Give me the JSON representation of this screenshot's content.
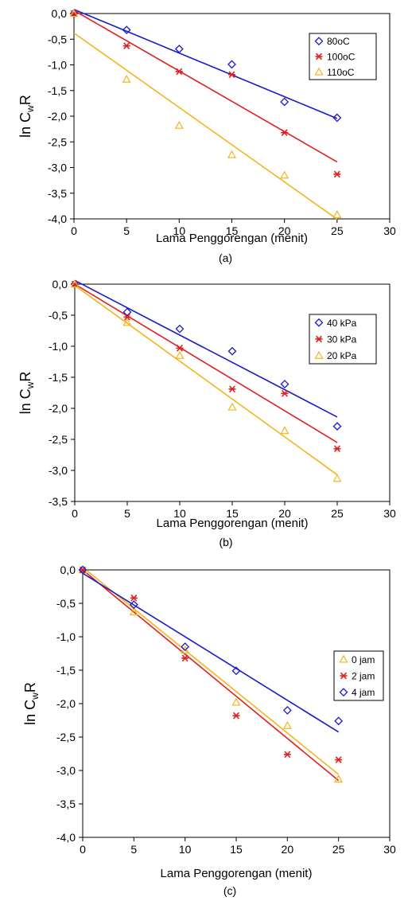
{
  "chart_data": [
    {
      "type": "scatter",
      "title": "",
      "panel_label": "(a)",
      "xlabel": "Lama Penggorengan (menit)",
      "ylabel": "ln C",
      "ylabel_sub": "w",
      "ylabel_tail": "R",
      "xlim": [
        0,
        30
      ],
      "ylim": [
        -4.0,
        0.0
      ],
      "xticks": [
        "0",
        "5",
        "10",
        "15",
        "20",
        "25",
        "30"
      ],
      "yticks": [
        "0,0",
        "-0,5",
        "-1,0",
        "-1,5",
        "-2,0",
        "-2,5",
        "-3,0",
        "-3,5",
        "-4,0"
      ],
      "grid": false,
      "legend_position": "top-right",
      "series": [
        {
          "name": "80oC",
          "marker": "diamond",
          "color": "#1a1acc",
          "x": [
            0,
            5,
            10,
            15,
            20,
            25
          ],
          "y": [
            0.0,
            -0.32,
            -0.69,
            -0.99,
            -1.72,
            -2.03
          ],
          "fit": [
            0.08,
            -0.085
          ]
        },
        {
          "name": "100oC",
          "marker": "asterisk",
          "color": "#e02020",
          "x": [
            0,
            5,
            10,
            15,
            20,
            25
          ],
          "y": [
            0.0,
            -0.63,
            -1.13,
            -1.19,
            -2.32,
            -3.13
          ],
          "fit": [
            0.06,
            -0.118
          ]
        },
        {
          "name": "110oC",
          "marker": "triangle",
          "color": "#f2b51c",
          "x": [
            0,
            5,
            10,
            15,
            20,
            25
          ],
          "y": [
            0.0,
            -1.28,
            -2.18,
            -2.75,
            -3.15,
            -3.92
          ],
          "fit": [
            -0.38,
            -0.145
          ]
        }
      ]
    },
    {
      "type": "scatter",
      "title": "",
      "panel_label": "(b)",
      "xlabel": "Lama Penggorengan (menit)",
      "ylabel": "ln C",
      "ylabel_sub": "w",
      "ylabel_tail": "R",
      "xlim": [
        0,
        30
      ],
      "ylim": [
        -3.5,
        0.0
      ],
      "xticks": [
        "0",
        "5",
        "10",
        "15",
        "20",
        "25",
        "30"
      ],
      "yticks": [
        "0,0",
        "-0,5",
        "-1,0",
        "-1,5",
        "-2,0",
        "-2,5",
        "-3,0",
        "-3,5"
      ],
      "grid": false,
      "legend_position": "top-right",
      "series": [
        {
          "name": "40 kPa",
          "marker": "diamond",
          "color": "#1a1acc",
          "x": [
            0,
            5,
            10,
            15,
            20,
            25
          ],
          "y": [
            0.0,
            -0.45,
            -0.72,
            -1.08,
            -1.61,
            -2.29
          ],
          "fit": [
            0.06,
            -0.088
          ]
        },
        {
          "name": "30 kPa",
          "marker": "asterisk",
          "color": "#e02020",
          "x": [
            0,
            5,
            10,
            15,
            20,
            25
          ],
          "y": [
            0.0,
            -0.53,
            -1.03,
            -1.69,
            -1.76,
            -2.65
          ],
          "fit": [
            0.0,
            -0.102
          ]
        },
        {
          "name": "20 kPa",
          "marker": "triangle",
          "color": "#f2b51c",
          "x": [
            0,
            5,
            10,
            15,
            20,
            25
          ],
          "y": [
            0.0,
            -0.62,
            -1.15,
            -1.98,
            -2.36,
            -3.13
          ],
          "fit": [
            -0.02,
            -0.122
          ]
        }
      ]
    },
    {
      "type": "scatter",
      "title": "",
      "panel_label": "(c)",
      "xlabel": "Lama Penggorengan (menit)",
      "ylabel": "ln C",
      "ylabel_sub": "w",
      "ylabel_tail": "R",
      "xlim": [
        0,
        30
      ],
      "ylim": [
        -4.0,
        0.0
      ],
      "xticks": [
        "0",
        "5",
        "10",
        "15",
        "20",
        "25",
        "30"
      ],
      "yticks": [
        "0,0",
        "-0,5",
        "-1,0",
        "-1,5",
        "-2,0",
        "-2,5",
        "-3,0",
        "-3,5",
        "-4,0"
      ],
      "grid": false,
      "legend_position": "top-right",
      "series": [
        {
          "name": "0 jam",
          "marker": "triangle",
          "color": "#f2b51c",
          "x": [
            0,
            5,
            10,
            15,
            20,
            25
          ],
          "y": [
            0.0,
            -0.63,
            -1.2,
            -1.98,
            -2.33,
            -3.13
          ],
          "fit": [
            0.04,
            -0.124
          ]
        },
        {
          "name": "2 jam",
          "marker": "asterisk",
          "color": "#e02020",
          "x": [
            0,
            5,
            10,
            15,
            20,
            25
          ],
          "y": [
            0.0,
            -0.42,
            -1.32,
            -2.18,
            -2.76,
            -2.84
          ],
          "fit": [
            0.0,
            -0.126
          ]
        },
        {
          "name": "4 jam",
          "marker": "diamond",
          "color": "#1a1acc",
          "x": [
            0,
            5,
            10,
            15,
            20,
            25
          ],
          "y": [
            0.0,
            -0.52,
            -1.15,
            -1.51,
            -2.1,
            -2.26
          ],
          "fit": [
            -0.05,
            -0.095
          ]
        }
      ]
    }
  ]
}
